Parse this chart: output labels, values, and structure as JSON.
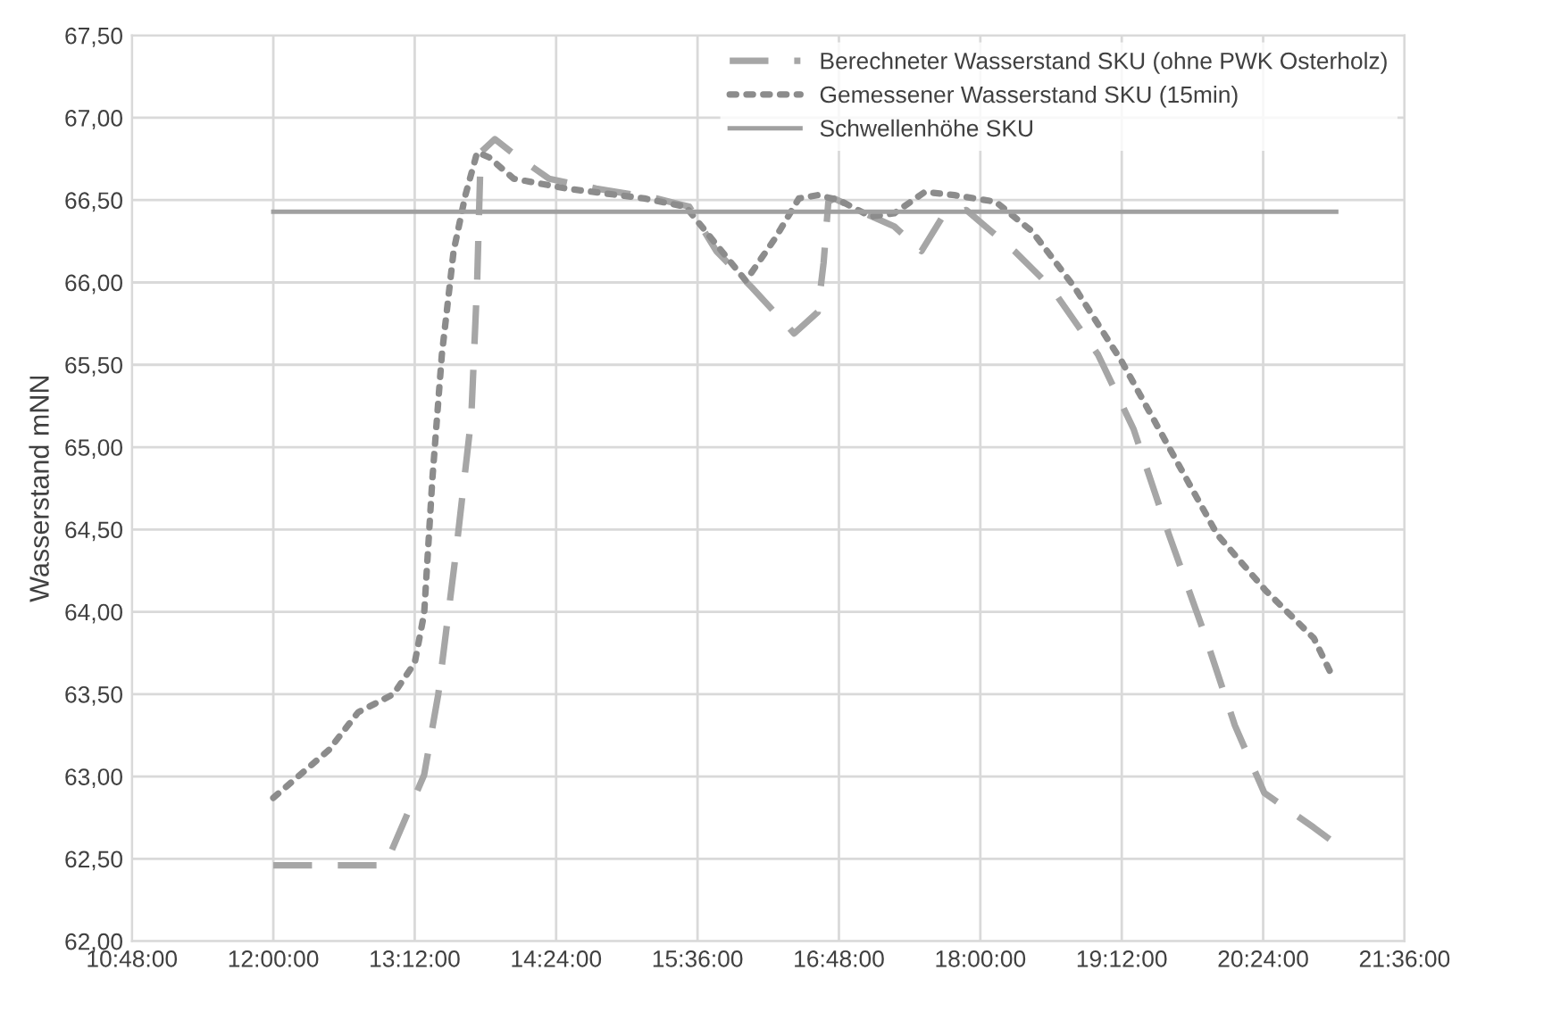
{
  "chart_data": {
    "type": "line",
    "ylabel": "Wasserstand mNN",
    "xlim": [
      10.8,
      21.6
    ],
    "ylim": [
      62.0,
      67.5
    ],
    "xticks": [
      {
        "value": 10.8,
        "label": "10:48:00"
      },
      {
        "value": 12.0,
        "label": "12:00:00"
      },
      {
        "value": 13.2,
        "label": "13:12:00"
      },
      {
        "value": 14.4,
        "label": "14:24:00"
      },
      {
        "value": 15.6,
        "label": "15:36:00"
      },
      {
        "value": 16.8,
        "label": "16:48:00"
      },
      {
        "value": 18.0,
        "label": "18:00:00"
      },
      {
        "value": 19.2,
        "label": "19:12:00"
      },
      {
        "value": 20.4,
        "label": "20:24:00"
      },
      {
        "value": 21.6,
        "label": "21:36:00"
      }
    ],
    "yticks": [
      {
        "value": 62.0,
        "label": "62,00"
      },
      {
        "value": 62.5,
        "label": "62,50"
      },
      {
        "value": 63.0,
        "label": "63,00"
      },
      {
        "value": 63.5,
        "label": "63,50"
      },
      {
        "value": 64.0,
        "label": "64,00"
      },
      {
        "value": 64.5,
        "label": "64,50"
      },
      {
        "value": 65.0,
        "label": "65,00"
      },
      {
        "value": 65.5,
        "label": "65,50"
      },
      {
        "value": 66.0,
        "label": "66,00"
      },
      {
        "value": 66.5,
        "label": "66,50"
      },
      {
        "value": 67.0,
        "label": "67,00"
      },
      {
        "value": 67.5,
        "label": "67,50"
      }
    ],
    "grid": true,
    "legend": "top right",
    "marker": "none",
    "series": [
      {
        "name": "Berechneter Wasserstand SKU (ohne PWK Osterholz)",
        "color": "#a6a6a6",
        "line_style": "dashed",
        "x": [
          12.0,
          12.95,
          13.28,
          13.4,
          13.55,
          13.68,
          13.73,
          13.76,
          13.88,
          14.04,
          14.34,
          14.74,
          15.25,
          15.53,
          15.76,
          16.06,
          16.42,
          16.62,
          16.67,
          16.71,
          16.76,
          17.02,
          17.27,
          17.5,
          17.68,
          17.88,
          18.29,
          18.6,
          19.0,
          19.3,
          19.6,
          19.9,
          20.16,
          20.41,
          20.83,
          21.0
        ],
        "values": [
          62.46,
          62.46,
          63.01,
          63.5,
          64.36,
          65.18,
          66.01,
          66.79,
          66.87,
          66.78,
          66.63,
          66.57,
          66.51,
          66.46,
          66.19,
          65.97,
          65.69,
          65.82,
          66.12,
          66.49,
          66.51,
          66.42,
          66.34,
          66.19,
          66.4,
          66.44,
          66.19,
          65.97,
          65.56,
          65.11,
          64.47,
          63.87,
          63.31,
          62.9,
          62.69,
          62.6
        ]
      },
      {
        "name": "Gemessener Wasserstand SKU (15min)",
        "color": "#8c8c8c",
        "line_style": "dotted",
        "x": [
          12.0,
          12.47,
          12.72,
          13.02,
          13.2,
          13.28,
          13.35,
          13.43,
          13.53,
          13.63,
          13.73,
          13.83,
          14.04,
          14.49,
          15.15,
          15.5,
          15.76,
          16.01,
          16.26,
          16.46,
          16.62,
          16.8,
          17.07,
          17.27,
          17.53,
          17.78,
          18.13,
          18.44,
          18.8,
          19.2,
          19.6,
          20.01,
          20.42,
          20.83,
          21.0
        ],
        "values": [
          62.87,
          63.16,
          63.39,
          63.5,
          63.69,
          63.99,
          64.81,
          65.56,
          66.19,
          66.53,
          66.79,
          66.76,
          66.63,
          66.57,
          66.51,
          66.46,
          66.23,
          66.01,
          66.27,
          66.51,
          66.53,
          66.5,
          66.4,
          66.42,
          66.55,
          66.53,
          66.49,
          66.31,
          65.97,
          65.52,
          65.0,
          64.47,
          64.13,
          63.84,
          63.59
        ]
      },
      {
        "name": "Schwellenhöhe SKU",
        "color": "#a0a0a0",
        "line_style": "solid",
        "x": [
          12.0,
          21.02
        ],
        "values": [
          66.43,
          66.43
        ]
      }
    ]
  }
}
